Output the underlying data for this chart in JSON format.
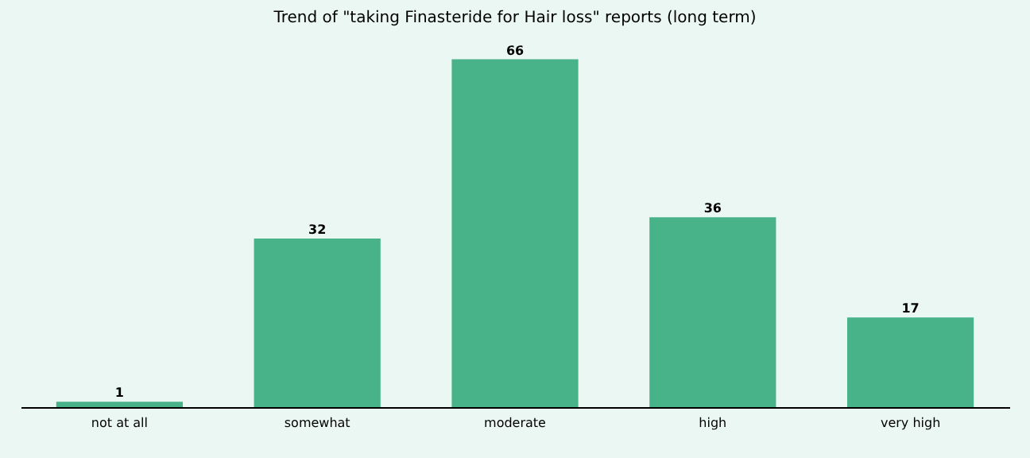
{
  "chart_data": {
    "type": "bar",
    "title": "Trend of \"taking Finasteride for Hair loss\" reports (long term)",
    "categories": [
      "not at all",
      "somewhat",
      "moderate",
      "high",
      "very high"
    ],
    "values": [
      1,
      32,
      66,
      36,
      17
    ],
    "color": "#48b389",
    "data_labels": true
  }
}
